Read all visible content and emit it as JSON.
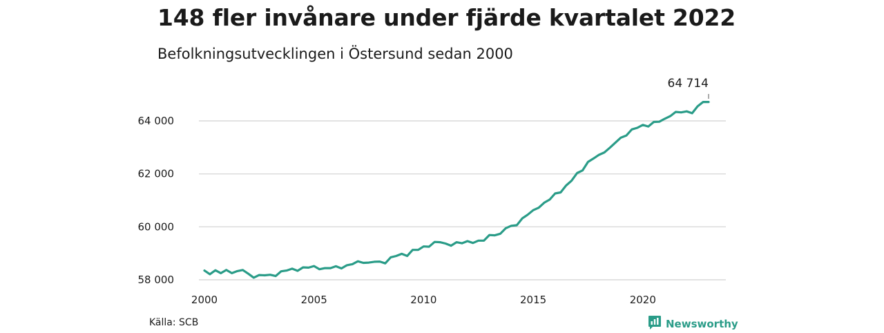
{
  "header": {
    "title": "148 fler invånare under fjärde kvartalet 2022",
    "subtitle": "Befolkningsutvecklingen i Östersund sedan 2000"
  },
  "footer": {
    "source": "Källa: SCB",
    "brand": "Newsworthy",
    "brand_icon": "newsworthy-logo-icon",
    "brand_color": "#2a9c88"
  },
  "chart_data": {
    "type": "line",
    "title": "148 fler invånare under fjärde kvartalet 2022",
    "subtitle": "Befolkningsutvecklingen i Östersund sedan 2000",
    "xlabel": "",
    "ylabel": "",
    "xlim": [
      2000,
      2023.5
    ],
    "ylim": [
      58000,
      64800
    ],
    "x_ticks": [
      2000,
      2005,
      2010,
      2015,
      2020
    ],
    "x_tick_labels": [
      "2000",
      "2005",
      "2010",
      "2015",
      "2020"
    ],
    "y_ticks": [
      58000,
      60000,
      62000,
      64000
    ],
    "y_tick_labels": [
      "58 000",
      "60 000",
      "62 000",
      "64 000"
    ],
    "grid": "horizontal",
    "line_color": "#2a9c88",
    "annotation": {
      "label": "64 714",
      "value": 64714
    },
    "series": [
      {
        "x": [
          2000.0,
          2000.25,
          2000.5,
          2000.75,
          2001.0,
          2001.25,
          2001.5,
          2001.75,
          2002.0,
          2002.25,
          2002.5,
          2002.75,
          2003.0,
          2003.25,
          2003.5,
          2003.75,
          2004.0,
          2004.25,
          2004.5,
          2004.75,
          2005.0,
          2005.25,
          2005.5,
          2005.75,
          2006.0,
          2006.25,
          2006.5,
          2006.75,
          2007.0,
          2007.25,
          2007.5,
          2007.75,
          2008.0,
          2008.25,
          2008.5,
          2008.75,
          2009.0,
          2009.25,
          2009.5,
          2009.75,
          2010.0,
          2010.25,
          2010.5,
          2010.75,
          2011.0,
          2011.25,
          2011.5,
          2011.75,
          2012.0,
          2012.25,
          2012.5,
          2012.75,
          2013.0,
          2013.25,
          2013.5,
          2013.75,
          2014.0,
          2014.25,
          2014.5,
          2014.75,
          2015.0,
          2015.25,
          2015.5,
          2015.75,
          2016.0,
          2016.25,
          2016.5,
          2016.75,
          2017.0,
          2017.25,
          2017.5,
          2017.75,
          2018.0,
          2018.25,
          2018.5,
          2018.75,
          2019.0,
          2019.25,
          2019.5,
          2019.75,
          2020.0,
          2020.25,
          2020.5,
          2020.75,
          2021.0,
          2021.25,
          2021.5,
          2021.75,
          2022.0,
          2022.25,
          2022.5,
          2022.75,
          2023.0
        ],
        "values": [
          58350,
          58210,
          58360,
          58250,
          58370,
          58250,
          58330,
          58370,
          58230,
          58080,
          58180,
          58170,
          58190,
          58140,
          58320,
          58350,
          58420,
          58340,
          58470,
          58460,
          58520,
          58400,
          58440,
          58440,
          58510,
          58430,
          58550,
          58590,
          58700,
          58640,
          58650,
          58680,
          58690,
          58620,
          58850,
          58900,
          58980,
          58900,
          59130,
          59130,
          59260,
          59250,
          59430,
          59420,
          59370,
          59290,
          59420,
          59380,
          59460,
          59390,
          59480,
          59480,
          59690,
          59680,
          59740,
          59950,
          60040,
          60060,
          60320,
          60460,
          60630,
          60720,
          60910,
          61030,
          61260,
          61300,
          61560,
          61740,
          62030,
          62130,
          62450,
          62580,
          62720,
          62810,
          62990,
          63180,
          63370,
          63450,
          63680,
          63740,
          63850,
          63790,
          63960,
          63970,
          64080,
          64180,
          64340,
          64320,
          64360,
          64290,
          64550,
          64714,
          64714
        ]
      }
    ]
  }
}
